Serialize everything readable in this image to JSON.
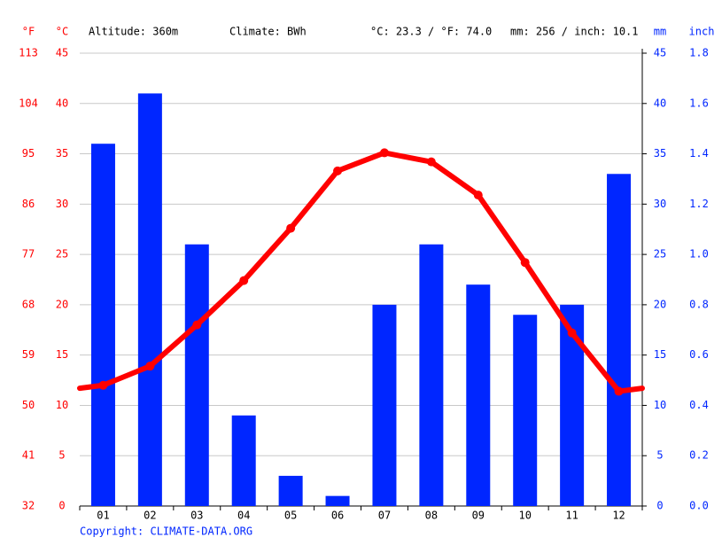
{
  "chart_data": {
    "type": "bar",
    "header": {
      "altitude": "Altitude: 360m",
      "climate": "Climate: BWh",
      "temperature": "°C: 23.3 / °F: 74.0",
      "precipitation": "mm: 256 / inch: 10.1"
    },
    "copyright": "Copyright: CLIMATE-DATA.ORG",
    "categories": [
      "01",
      "02",
      "03",
      "04",
      "05",
      "06",
      "07",
      "08",
      "09",
      "10",
      "11",
      "12"
    ],
    "series": [
      {
        "name": "mm",
        "type": "bar",
        "axis": "y2",
        "color": "#0026ff",
        "values": [
          36,
          41,
          26,
          9,
          3,
          1,
          20,
          26,
          22,
          19,
          20,
          33
        ]
      },
      {
        "name": "°C",
        "type": "line",
        "color": "#ff0000",
        "values": [
          12.0,
          13.9,
          18.0,
          22.4,
          27.6,
          33.3,
          35.1,
          34.2,
          30.9,
          24.2,
          17.2,
          11.4
        ]
      }
    ],
    "ylim": [
      0,
      45
    ],
    "yticks": [
      0,
      5,
      10,
      15,
      20,
      25,
      30,
      35,
      40,
      45
    ],
    "y_f_label": "°F",
    "ylim_f": [
      32,
      113
    ],
    "yticks_f": [
      32,
      41,
      50,
      59,
      68,
      77,
      86,
      95,
      104,
      113
    ],
    "y2lim": [
      0,
      45
    ],
    "y2ticks": [
      0,
      5,
      10,
      15,
      20,
      25,
      30,
      35,
      40,
      45
    ],
    "y2_inch_label": "inch",
    "y2lim_inch": [
      0,
      1.8
    ],
    "y2ticks_inch": [
      {
        "value": 0,
        "label": "0.0"
      },
      0.2,
      0.4,
      0.6,
      0.8,
      {
        "value": 1,
        "label": "1.0"
      },
      1.2,
      1.4,
      1.6,
      1.8
    ],
    "grid": true
  }
}
